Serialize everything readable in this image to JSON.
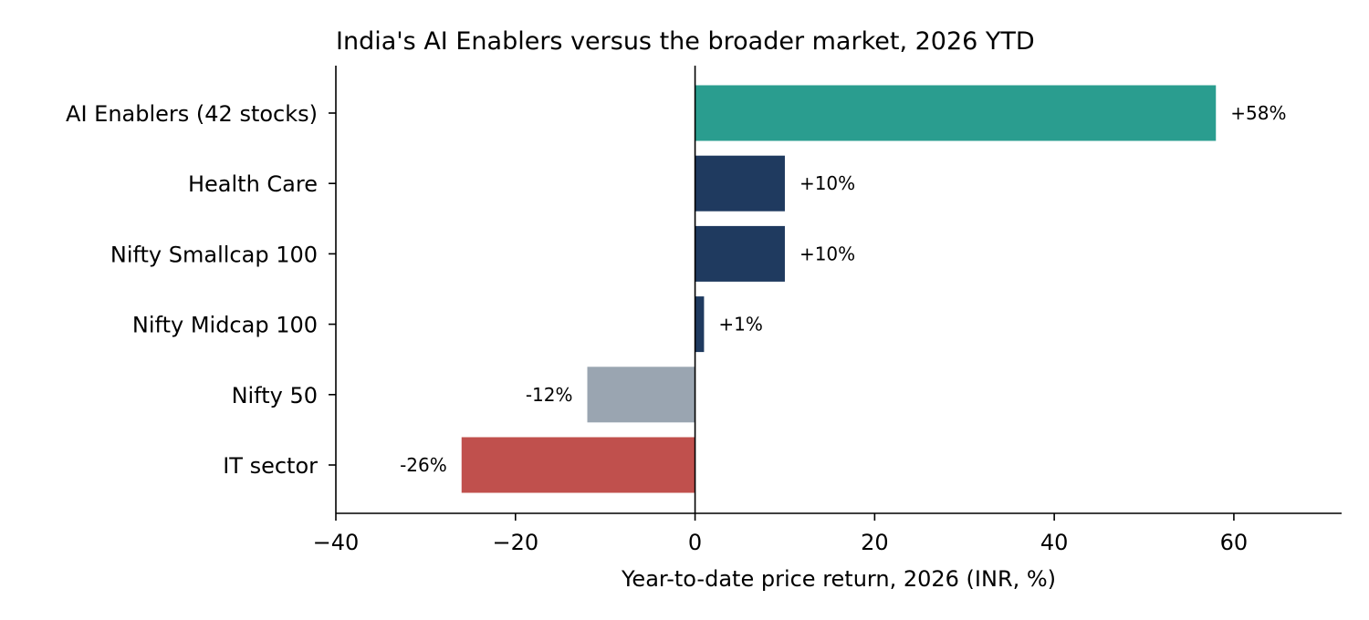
{
  "chart_data": {
    "type": "bar",
    "orientation": "horizontal",
    "title": "India's AI Enablers versus the broader market, 2026 YTD",
    "xlabel": "Year-to-date price return, 2026 (INR, %)",
    "ylabel": "",
    "xlim": [
      -40,
      72
    ],
    "xticks": [
      -40,
      -20,
      0,
      20,
      40,
      60
    ],
    "xtick_labels": [
      "−40",
      "−20",
      "0",
      "20",
      "40",
      "60"
    ],
    "grid": false,
    "legend": "none",
    "categories": [
      "AI Enablers (42 stocks)",
      "Health Care",
      "Nifty Smallcap 100",
      "Nifty Midcap 100",
      "Nifty 50",
      "IT sector"
    ],
    "values": [
      58,
      10,
      10,
      1,
      -12,
      -26
    ],
    "data_labels": [
      "+58%",
      "+10%",
      "+10%",
      "+1%",
      "-12%",
      "-26%"
    ],
    "colors": [
      "#2a9d8f",
      "#1f3a5f",
      "#1f3a5f",
      "#1f3a5f",
      "#9aa5b1",
      "#c0504d"
    ]
  }
}
